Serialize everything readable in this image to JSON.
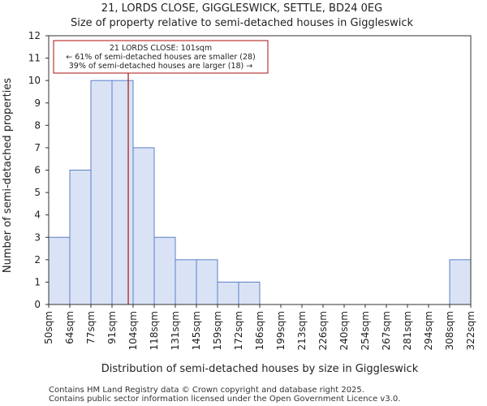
{
  "chart_data": {
    "type": "bar",
    "title": [
      "21, LORDS CLOSE, GIGGLESWICK, SETTLE, BD24 0EG",
      "Size of property relative to semi-detached houses in Giggleswick"
    ],
    "xlabel": "Distribution of semi-detached houses by size in Giggleswick",
    "ylabel": "Number of semi-detached properties",
    "bin_edges": [
      "50sqm",
      "64sqm",
      "77sqm",
      "91sqm",
      "104sqm",
      "118sqm",
      "131sqm",
      "145sqm",
      "159sqm",
      "172sqm",
      "186sqm",
      "199sqm",
      "213sqm",
      "226sqm",
      "240sqm",
      "254sqm",
      "267sqm",
      "281sqm",
      "294sqm",
      "308sqm",
      "322sqm"
    ],
    "values": [
      3,
      6,
      10,
      10,
      7,
      3,
      2,
      2,
      1,
      1,
      0,
      0,
      0,
      0,
      0,
      0,
      0,
      0,
      0,
      2
    ],
    "ylim": [
      0,
      12
    ],
    "yticks": [
      "0",
      "1",
      "2",
      "3",
      "4",
      "5",
      "6",
      "7",
      "8",
      "9",
      "10",
      "11",
      "12"
    ],
    "marker_bin_position": 3.77,
    "marker_color": "#aa1111",
    "bar_fill": "#dae3f5",
    "bar_edge": "#5b80c8",
    "annotation": [
      "21 LORDS CLOSE: 101sqm",
      "← 61% of semi-detached houses are smaller (28)",
      "39% of semi-detached houses are larger (18) →"
    ]
  },
  "footer": [
    "Contains HM Land Registry data © Crown copyright and database right 2025.",
    "Contains public sector information licensed under the Open Government Licence v3.0."
  ]
}
